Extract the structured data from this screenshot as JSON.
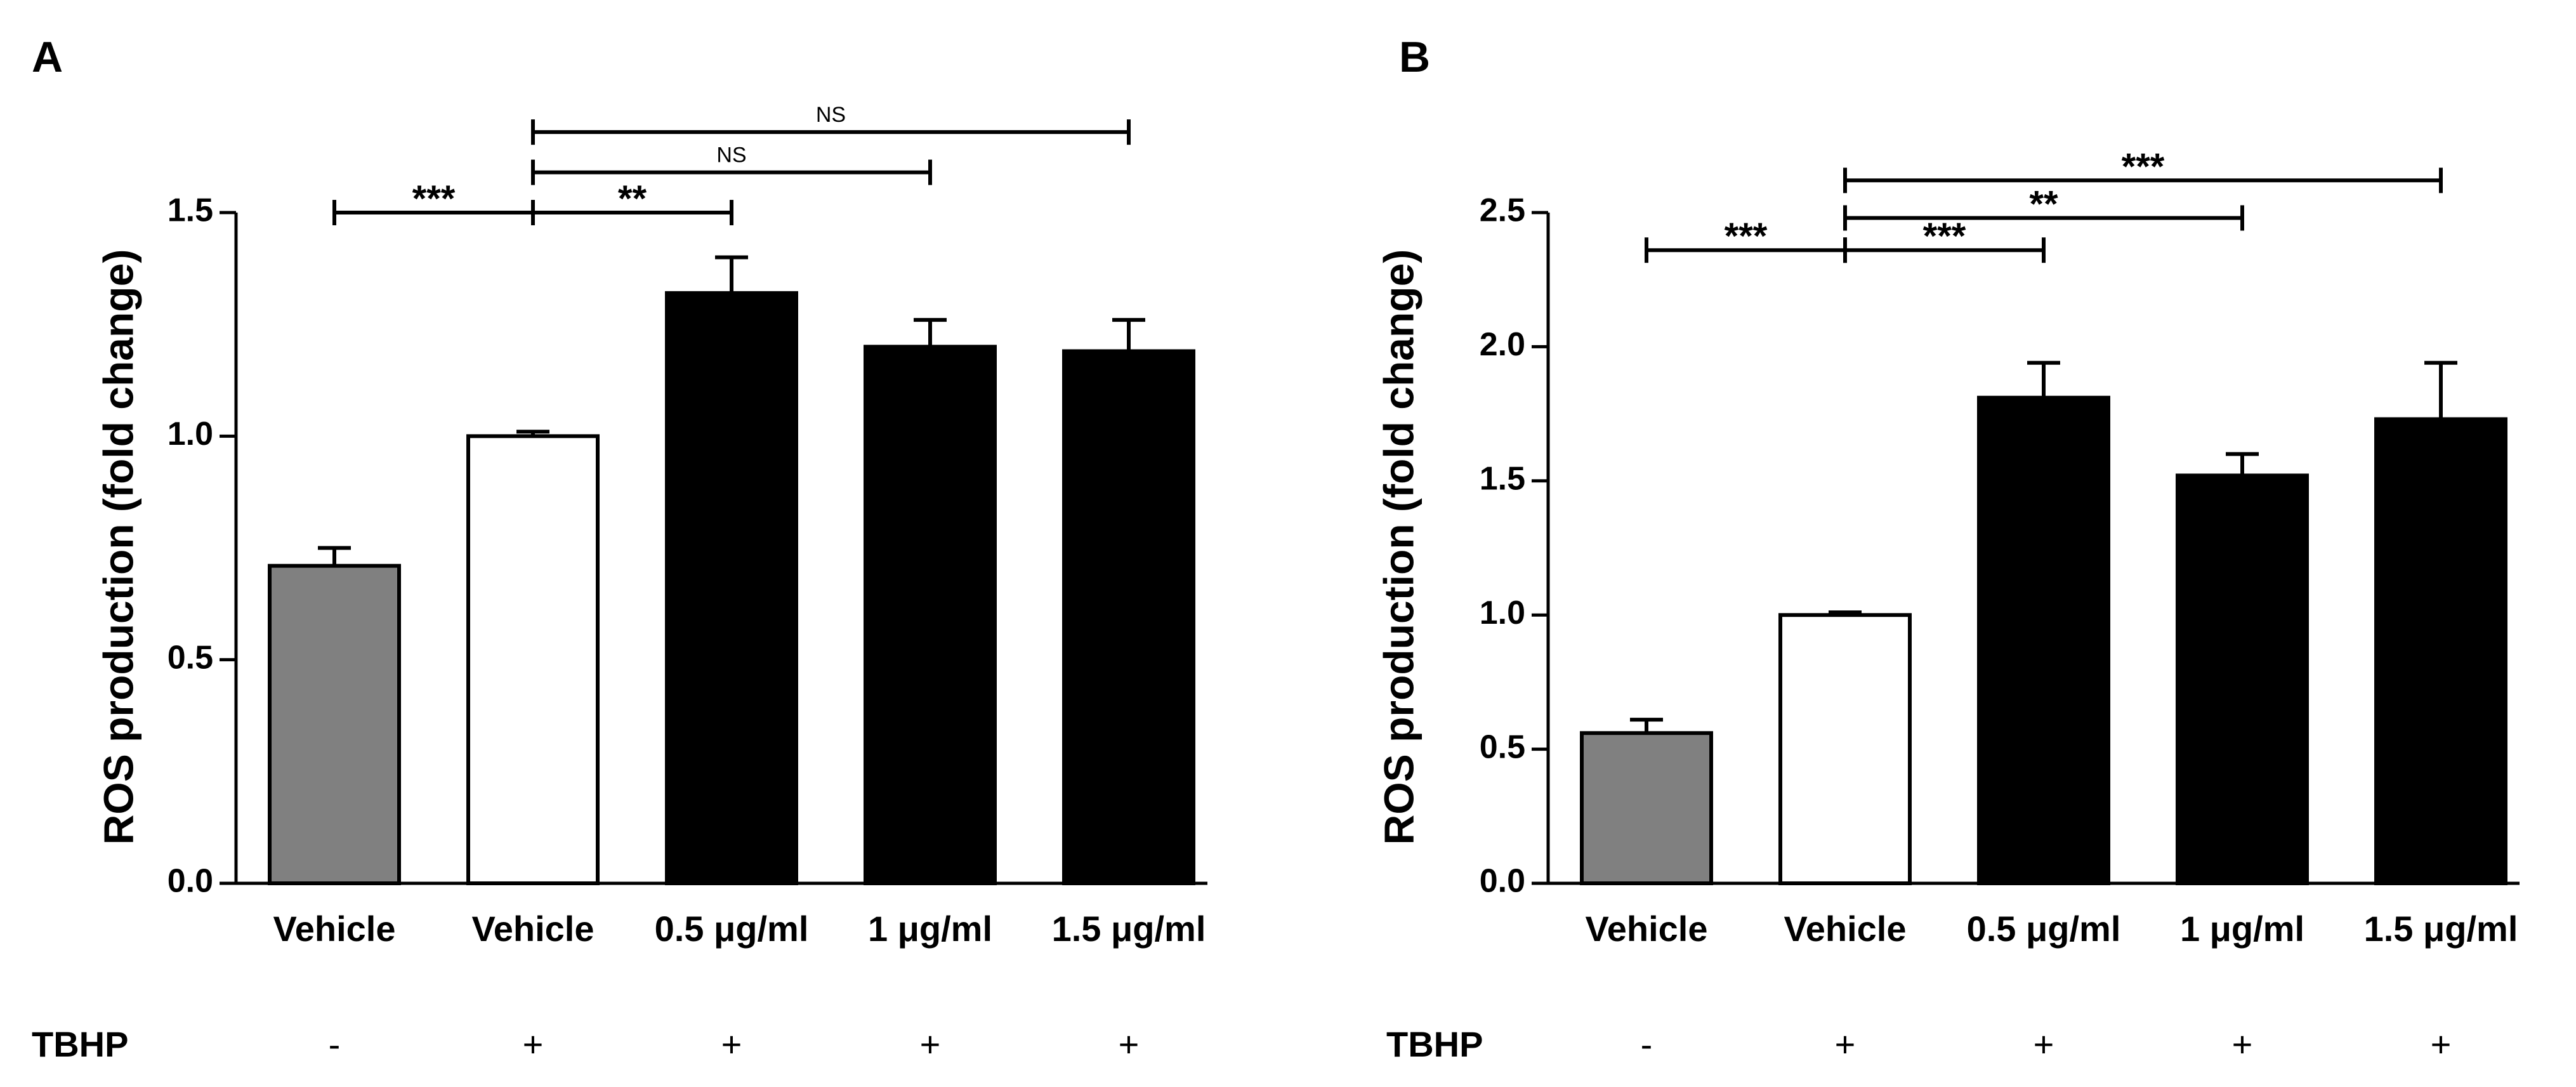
{
  "chart_data": [
    {
      "panel": "A",
      "type": "bar",
      "categories": [
        "Vehicle",
        "Vehicle",
        "0.5 μg/ml",
        "1 μg/ml",
        "1.5 μg/ml"
      ],
      "values": [
        0.71,
        1.0,
        1.32,
        1.2,
        1.19
      ],
      "errors": [
        0.04,
        0.01,
        0.08,
        0.06,
        0.07
      ],
      "bar_colors": [
        "#808080",
        "#ffffff",
        "#000000",
        "#000000",
        "#000000"
      ],
      "ylabel": "ROS production (fold change)",
      "xlabel": "",
      "ylim": [
        0,
        1.5
      ],
      "yticks": [
        "0.0",
        "0.5",
        "1.0",
        "1.5"
      ],
      "ytick_values": [
        0,
        0.5,
        1.0,
        1.5
      ],
      "treatment_row": {
        "label": "TBHP",
        "values": [
          "-",
          "+",
          "+",
          "+",
          "+"
        ]
      },
      "significance": [
        {
          "from": 0,
          "to": 1,
          "label": "***",
          "level": 1.5
        },
        {
          "from": 1,
          "to": 2,
          "label": "**",
          "level": 1.5
        },
        {
          "from": 1,
          "to": 3,
          "label": "NS",
          "level": 1.59
        },
        {
          "from": 1,
          "to": 4,
          "label": "NS",
          "level": 1.68
        }
      ]
    },
    {
      "panel": "B",
      "type": "bar",
      "categories": [
        "Vehicle",
        "Vehicle",
        "0.5 μg/ml",
        "1 μg/ml",
        "1.5 μg/ml"
      ],
      "values": [
        0.56,
        1.0,
        1.81,
        1.52,
        1.73
      ],
      "errors": [
        0.05,
        0.01,
        0.13,
        0.08,
        0.21
      ],
      "bar_colors": [
        "#808080",
        "#ffffff",
        "#000000",
        "#000000",
        "#000000"
      ],
      "ylabel": "ROS production (fold change)",
      "xlabel": "",
      "ylim": [
        0,
        2.5
      ],
      "yticks": [
        "0.0",
        "0.5",
        "1.0",
        "1.5",
        "2.0",
        "2.5"
      ],
      "ytick_values": [
        0,
        0.5,
        1.0,
        1.5,
        2.0,
        2.5
      ],
      "treatment_row": {
        "label": "TBHP",
        "values": [
          "-",
          "+",
          "+",
          "+",
          "+"
        ]
      },
      "significance": [
        {
          "from": 0,
          "to": 1,
          "label": "***",
          "level": 2.36
        },
        {
          "from": 1,
          "to": 2,
          "label": "***",
          "level": 2.36
        },
        {
          "from": 1,
          "to": 3,
          "label": "**",
          "level": 2.48
        },
        {
          "from": 1,
          "to": 4,
          "label": "***",
          "level": 2.62
        }
      ]
    }
  ]
}
